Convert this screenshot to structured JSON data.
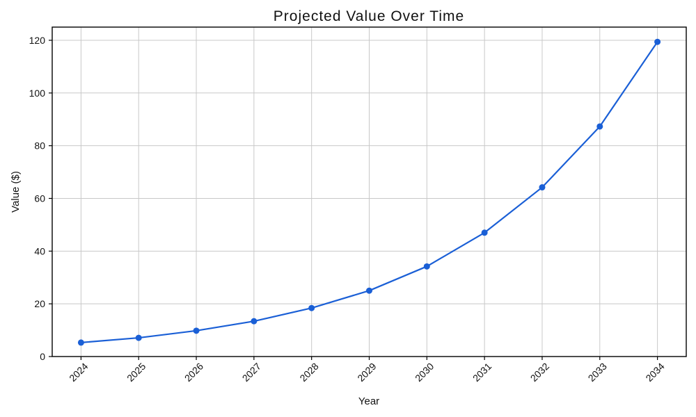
{
  "chart_data": {
    "type": "line",
    "title": "Projected Value Over Time",
    "xlabel": "Year",
    "ylabel": "Value ($)",
    "categories": [
      "2024",
      "2025",
      "2026",
      "2027",
      "2028",
      "2029",
      "2030",
      "2031",
      "2032",
      "2033",
      "2034"
    ],
    "values": [
      5.3,
      7.1,
      9.8,
      13.4,
      18.4,
      25.0,
      34.2,
      47.0,
      64.2,
      87.3,
      119.4
    ],
    "yticks": [
      0,
      20,
      40,
      60,
      80,
      100,
      120
    ],
    "ylim": [
      0,
      125
    ],
    "grid": true,
    "legend": "none",
    "line_color": "#1a5fd6",
    "marker": "circle",
    "grid_color": "#c8c8c8",
    "axis_color": "#000000",
    "text_color": "#111111"
  }
}
